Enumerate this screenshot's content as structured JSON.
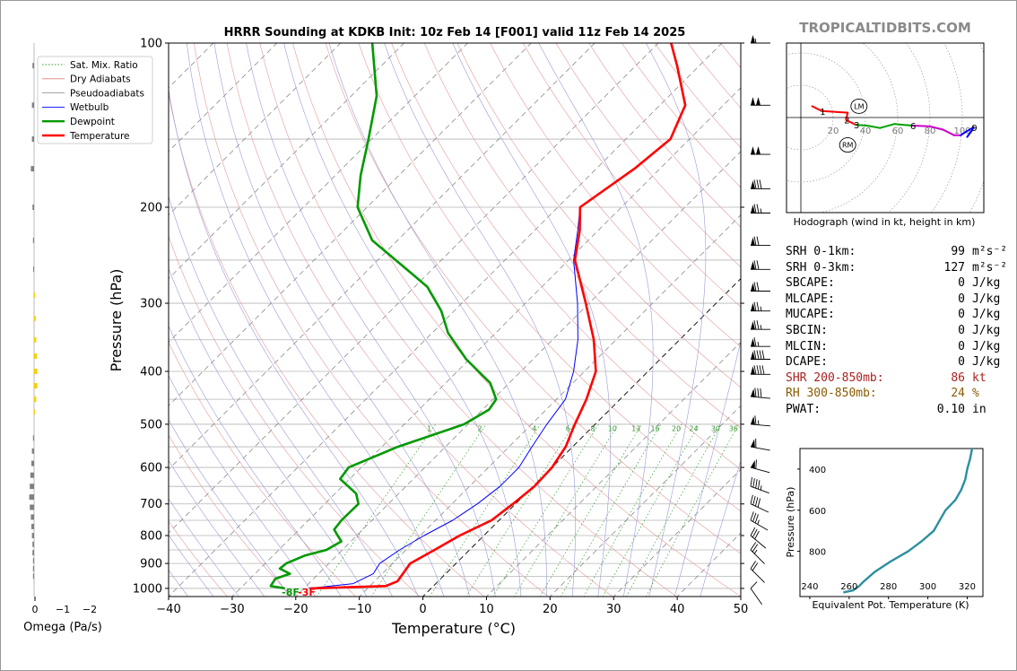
{
  "title": "HRRR Sounding at KDKB Init: 10z Feb 14 [F001] valid 11z Feb 14 2025",
  "watermark": "TROPICALTIDBITS.COM",
  "omega": {
    "label": "Omega (Pa/s)",
    "ticks": [
      "0",
      "−1",
      "−2"
    ]
  },
  "chart_data": [
    {
      "type": "line",
      "name": "skew-t",
      "xlabel": "Temperature (°C)",
      "ylabel": "Pressure (hPa)",
      "xlim": [
        -40,
        50
      ],
      "ylim": [
        1035,
        100
      ],
      "yscale": "log",
      "skew": "45 degrees",
      "x_ticks": [
        "−40",
        "−30",
        "−20",
        "−10",
        "0",
        "10",
        "20",
        "30",
        "40",
        "50"
      ],
      "y_ticks": [
        "100",
        "200",
        "300",
        "400",
        "500",
        "600",
        "700",
        "800",
        "900",
        "1000"
      ],
      "mixing_ratio_labels": [
        "1",
        "2",
        "4",
        "6",
        "8",
        "10",
        "13",
        "16",
        "20",
        "24",
        "30",
        "36"
      ],
      "surface_labels": {
        "dewpoint": "-8F",
        "temperature": "-3F"
      },
      "legend": {
        "placement": "top-left",
        "entries": [
          {
            "label": "Sat. Mix. Ratio",
            "color": "#2ca02c",
            "style": "dotted"
          },
          {
            "label": "Dry Adiabats",
            "color": "#e08080",
            "style": "solid"
          },
          {
            "label": "Pseudoadiabats",
            "color": "#9a9a9a",
            "style": "solid"
          },
          {
            "label": "Wetbulb",
            "color": "#0000ff",
            "style": "solid"
          },
          {
            "label": "Dewpoint",
            "color": "#009900",
            "style": "solid"
          },
          {
            "label": "Temperature",
            "color": "#ff0000",
            "style": "solid"
          }
        ]
      },
      "series": [
        {
          "name": "Temperature",
          "color": "#ff0000",
          "points": [
            [
              1000,
              -19
            ],
            [
              990,
              -7.5
            ],
            [
              970,
              -6.4
            ],
            [
              900,
              -7.2
            ],
            [
              850,
              -5.5
            ],
            [
              800,
              -3.8
            ],
            [
              750,
              -1.2
            ],
            [
              700,
              -0.4
            ],
            [
              650,
              0.2
            ],
            [
              600,
              0
            ],
            [
              550,
              -1.1
            ],
            [
              500,
              -3.2
            ],
            [
              450,
              -5.3
            ],
            [
              400,
              -8.2
            ],
            [
              350,
              -13.5
            ],
            [
              300,
              -20.5
            ],
            [
              250,
              -29
            ],
            [
              220,
              -33
            ],
            [
              200,
              -36.5
            ],
            [
              170,
              -34
            ],
            [
              150,
              -33
            ],
            [
              130,
              -36
            ],
            [
              110,
              -43.5
            ],
            [
              100,
              -48
            ]
          ]
        },
        {
          "name": "Dewpoint",
          "color": "#009900",
          "points": [
            [
              1000,
              -23
            ],
            [
              990,
              -25.6
            ],
            [
              960,
              -26
            ],
            [
              940,
              -24.5
            ],
            [
              920,
              -26.9
            ],
            [
              900,
              -26.7
            ],
            [
              870,
              -25
            ],
            [
              850,
              -22.5
            ],
            [
              820,
              -21.5
            ],
            [
              800,
              -23
            ],
            [
              780,
              -24.5
            ],
            [
              750,
              -24.8
            ],
            [
              700,
              -24.7
            ],
            [
              670,
              -26.7
            ],
            [
              630,
              -31.5
            ],
            [
              600,
              -32
            ],
            [
              550,
              -27.5
            ],
            [
              500,
              -20.6
            ],
            [
              470,
              -19
            ],
            [
              450,
              -19.5
            ],
            [
              420,
              -23
            ],
            [
              380,
              -30.5
            ],
            [
              340,
              -37.5
            ],
            [
              310,
              -42
            ],
            [
              280,
              -48
            ],
            [
              260,
              -54
            ],
            [
              230,
              -64
            ],
            [
              200,
              -71.5
            ],
            [
              175,
              -76
            ],
            [
              150,
              -80.5
            ],
            [
              125,
              -86
            ],
            [
              100,
              -95
            ]
          ]
        },
        {
          "name": "Wetbulb",
          "color": "#0000ff",
          "points": [
            [
              1000,
              -19.2
            ],
            [
              980,
              -13
            ],
            [
              940,
              -11.4
            ],
            [
              900,
              -12
            ],
            [
              850,
              -11
            ],
            [
              800,
              -9.4
            ],
            [
              750,
              -7.3
            ],
            [
              700,
              -6
            ],
            [
              650,
              -5.2
            ],
            [
              600,
              -5.2
            ],
            [
              550,
              -6.4
            ],
            [
              500,
              -7.6
            ],
            [
              450,
              -8.6
            ],
            [
              420,
              -10.4
            ],
            [
              400,
              -11.7
            ],
            [
              350,
              -16
            ],
            [
              300,
              -21.8
            ],
            [
              250,
              -29.2
            ],
            [
              220,
              -33.3
            ],
            [
              200,
              -36.5
            ]
          ]
        }
      ]
    },
    {
      "type": "line",
      "name": "hodograph",
      "caption": "Hodograph (wind in kt, height in km)",
      "ring_labels": [
        "20",
        "40",
        "60",
        "80",
        "100"
      ],
      "markers": [
        "LM",
        "RM"
      ],
      "height_labels": [
        "1",
        "2",
        "3",
        "6",
        "9"
      ],
      "x": [
        7,
        13,
        29,
        28,
        34,
        41,
        49,
        58,
        69,
        80,
        88,
        95,
        99,
        102,
        107,
        106,
        103
      ],
      "y": [
        7,
        4,
        3,
        -1.5,
        -4.5,
        -5,
        -6.5,
        -4,
        -5,
        -5.5,
        -7.5,
        -11,
        -11,
        -9,
        -6,
        -8,
        -12
      ],
      "colors": [
        "#ff0000",
        "#ff0000",
        "#ff0000",
        "#ff0000",
        "#ff0000",
        "#00a000",
        "#00a000",
        "#00a000",
        "#00a000",
        "#cc00cc",
        "#cc00cc",
        "#cc00cc",
        "#cc00cc",
        "#0000ff",
        "#0000ff",
        "#0000ff",
        "#0000ff"
      ]
    },
    {
      "type": "line",
      "name": "theta-e",
      "xlabel": "Equivalent Pot. Temperature (K)",
      "ylabel": "Pressure (hPa)",
      "x_ticks": [
        "240",
        "260",
        "280",
        "300",
        "320"
      ],
      "y_ticks": [
        "400",
        "600",
        "800"
      ],
      "xlim": [
        235,
        328
      ],
      "ylim": [
        1020,
        300
      ],
      "color": "#2a8fa0",
      "points": [
        [
          1000,
          257
        ],
        [
          990,
          262
        ],
        [
          970,
          265
        ],
        [
          950,
          267
        ],
        [
          900,
          273
        ],
        [
          850,
          281
        ],
        [
          800,
          290
        ],
        [
          750,
          297
        ],
        [
          700,
          303
        ],
        [
          650,
          306
        ],
        [
          600,
          309
        ],
        [
          550,
          314
        ],
        [
          500,
          317
        ],
        [
          450,
          319
        ],
        [
          400,
          320
        ],
        [
          350,
          321.5
        ],
        [
          300,
          322.5
        ]
      ]
    }
  ],
  "omega_bars": [
    {
      "p": 110,
      "v": 0.03,
      "c": "#808080"
    },
    {
      "p": 130,
      "v": 0.04,
      "c": "#808080"
    },
    {
      "p": 150,
      "v": 0.04,
      "c": "#808080"
    },
    {
      "p": 170,
      "v": 0.06,
      "c": "#808080"
    },
    {
      "p": 200,
      "v": 0.03,
      "c": "#808080"
    },
    {
      "p": 230,
      "v": 0.02,
      "c": "#808080"
    },
    {
      "p": 260,
      "v": 0.01,
      "c": "#808080"
    },
    {
      "p": 290,
      "v": -0.02,
      "c": "#f5d000"
    },
    {
      "p": 320,
      "v": -0.03,
      "c": "#f5d000"
    },
    {
      "p": 350,
      "v": -0.04,
      "c": "#f5d000"
    },
    {
      "p": 375,
      "v": -0.05,
      "c": "#f5d000"
    },
    {
      "p": 400,
      "v": -0.06,
      "c": "#f5d000"
    },
    {
      "p": 425,
      "v": -0.06,
      "c": "#f5d000"
    },
    {
      "p": 450,
      "v": -0.04,
      "c": "#f5d000"
    },
    {
      "p": 475,
      "v": -0.02,
      "c": "#f5d000"
    },
    {
      "p": 530,
      "v": 0.02,
      "c": "#808080"
    },
    {
      "p": 560,
      "v": 0.04,
      "c": "#808080"
    },
    {
      "p": 590,
      "v": 0.05,
      "c": "#808080"
    },
    {
      "p": 620,
      "v": 0.07,
      "c": "#808080"
    },
    {
      "p": 650,
      "v": 0.08,
      "c": "#808080"
    },
    {
      "p": 680,
      "v": 0.09,
      "c": "#808080"
    },
    {
      "p": 710,
      "v": 0.08,
      "c": "#808080"
    },
    {
      "p": 740,
      "v": 0.06,
      "c": "#808080"
    },
    {
      "p": 770,
      "v": 0.05,
      "c": "#808080"
    },
    {
      "p": 800,
      "v": 0.04,
      "c": "#808080"
    },
    {
      "p": 830,
      "v": 0.03,
      "c": "#808080"
    },
    {
      "p": 860,
      "v": 0.03,
      "c": "#808080"
    },
    {
      "p": 890,
      "v": 0.02,
      "c": "#808080"
    },
    {
      "p": 920,
      "v": 0.02,
      "c": "#808080"
    },
    {
      "p": 950,
      "v": 0.02,
      "c": "#808080"
    }
  ],
  "wind_barbs": [
    {
      "p": 100,
      "kt": 55,
      "dir": 270
    },
    {
      "p": 130,
      "kt": 100,
      "dir": 270
    },
    {
      "p": 160,
      "kt": 100,
      "dir": 270
    },
    {
      "p": 185,
      "kt": 80,
      "dir": 270
    },
    {
      "p": 205,
      "kt": 75,
      "dir": 270
    },
    {
      "p": 235,
      "kt": 70,
      "dir": 270
    },
    {
      "p": 260,
      "kt": 70,
      "dir": 270
    },
    {
      "p": 285,
      "kt": 70,
      "dir": 270
    },
    {
      "p": 310,
      "kt": 75,
      "dir": 270
    },
    {
      "p": 335,
      "kt": 75,
      "dir": 270
    },
    {
      "p": 360,
      "kt": 65,
      "dir": 270
    },
    {
      "p": 380,
      "kt": 90,
      "dir": 270
    },
    {
      "p": 405,
      "kt": 90,
      "dir": 270
    },
    {
      "p": 445,
      "kt": 80,
      "dir": 265
    },
    {
      "p": 500,
      "kt": 65,
      "dir": 265
    },
    {
      "p": 550,
      "kt": 60,
      "dir": 260
    },
    {
      "p": 600,
      "kt": 60,
      "dir": 255
    },
    {
      "p": 650,
      "kt": 45,
      "dir": 250
    },
    {
      "p": 700,
      "kt": 40,
      "dir": 245
    },
    {
      "p": 750,
      "kt": 35,
      "dir": 240
    },
    {
      "p": 800,
      "kt": 30,
      "dir": 230
    },
    {
      "p": 850,
      "kt": 25,
      "dir": 225
    },
    {
      "p": 920,
      "kt": 20,
      "dir": 225
    },
    {
      "p": 1000,
      "kt": 10,
      "dir": 215
    }
  ],
  "stats": [
    {
      "label": "SRH 0-1km:",
      "value": "99",
      "unit": "m²s⁻²",
      "color": "#000000"
    },
    {
      "label": "SRH 0-3km:",
      "value": "127",
      "unit": "m²s⁻²",
      "color": "#000000"
    },
    {
      "label": "SBCAPE:",
      "value": "0",
      "unit": "J/kg",
      "color": "#000000"
    },
    {
      "label": "MLCAPE:",
      "value": "0",
      "unit": "J/kg",
      "color": "#000000"
    },
    {
      "label": "MUCAPE:",
      "value": "0",
      "unit": "J/kg",
      "color": "#000000"
    },
    {
      "label": "SBCIN:",
      "value": "0",
      "unit": "J/kg",
      "color": "#000000"
    },
    {
      "label": "MLCIN:",
      "value": "0",
      "unit": "J/kg",
      "color": "#000000"
    },
    {
      "label": "DCAPE:",
      "value": "0",
      "unit": "J/kg",
      "color": "#000000"
    },
    {
      "label": "SHR 200-850mb:",
      "value": "86",
      "unit": "kt",
      "color": "#aa2222"
    },
    {
      "label": "RH 300-850mb:",
      "value": "24",
      "unit": "%",
      "color": "#8a5a00"
    },
    {
      "label": "PWAT:",
      "value": "0.10",
      "unit": "in",
      "color": "#000000"
    }
  ]
}
